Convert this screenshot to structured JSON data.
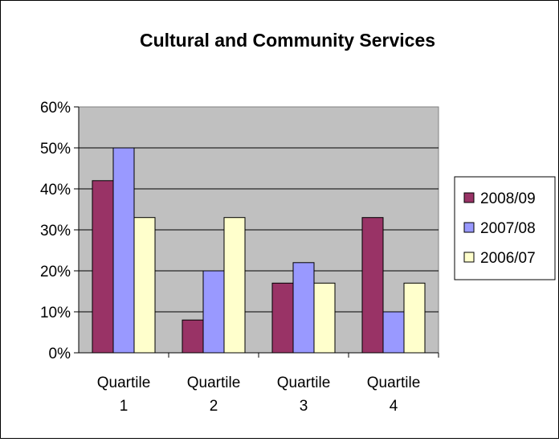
{
  "chart_data": {
    "type": "bar",
    "title": "Cultural and Community Services",
    "xlabel": "",
    "ylabel": "",
    "categories": [
      [
        "Quartile",
        "1"
      ],
      [
        "Quartile",
        "2"
      ],
      [
        "Quartile",
        "3"
      ],
      [
        "Quartile",
        "4"
      ]
    ],
    "y_ticks": [
      "0%",
      "10%",
      "20%",
      "30%",
      "40%",
      "50%",
      "60%"
    ],
    "ylim": [
      0,
      60
    ],
    "grid": true,
    "legend_position": "right",
    "plot_background": "#c0c0c0",
    "series": [
      {
        "name": "2008/09",
        "color": "#993366",
        "values": [
          42,
          8,
          17,
          33
        ]
      },
      {
        "name": "2007/08",
        "color": "#9999ff",
        "values": [
          50,
          20,
          22,
          10
        ]
      },
      {
        "name": "2006/07",
        "color": "#ffffcc",
        "values": [
          33,
          33,
          17,
          17
        ]
      }
    ]
  }
}
